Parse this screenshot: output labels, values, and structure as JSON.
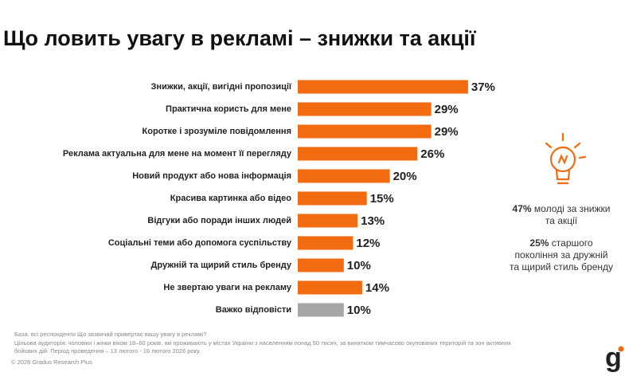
{
  "chart_data": {
    "type": "bar",
    "title": "Що ловить увагу в рекламі – знижки та акції",
    "categories": [
      "Знижки, акції, вигідні пропозиції",
      "Практична користь для мене",
      "Коротке і зрозуміле повідомлення",
      "Реклама актуальна для мене на момент її перегляду",
      "Новий продукт або нова інформація",
      "Красива картинка або відео",
      "Відгуки або поради інших людей",
      "Соціальні теми або допомога суспільству",
      "Дружній та щирий стиль бренду",
      "Не звертаю уваги на рекламу",
      "Важко відповісти"
    ],
    "values": [
      37,
      29,
      29,
      26,
      20,
      15,
      13,
      12,
      10,
      14,
      10
    ],
    "value_labels": [
      "37%",
      "29%",
      "29%",
      "26%",
      "20%",
      "15%",
      "13%",
      "12%",
      "10%",
      "14%",
      "10%"
    ],
    "colors": [
      "#f26b10",
      "#f26b10",
      "#f26b10",
      "#f26b10",
      "#f26b10",
      "#f26b10",
      "#f26b10",
      "#f26b10",
      "#f26b10",
      "#f26b10",
      "#a6a6a6"
    ],
    "annotations": [
      {
        "bold": "47%",
        "text": "молоді за знижки та акції"
      },
      {
        "bold": "25%",
        "text": "старшого покоління за дружній та щирий стиль бренду"
      }
    ]
  },
  "footer": {
    "base": "База: всі респонденти Що зазвичай привертає вашу увагу в рекламі?",
    "audience": "Цільова аудиторія: чоловіки і жінки віком 18–60 років, які проживають у містах України з населенням понад 50 тисяч, за винятком тимчасово окупованих територій та зон активних бойових дій. Період проведення – 13 лютого - 16 лютого 2026 року.",
    "copyright": "© 2026 Gradus Research Plus",
    "logo": "g"
  }
}
